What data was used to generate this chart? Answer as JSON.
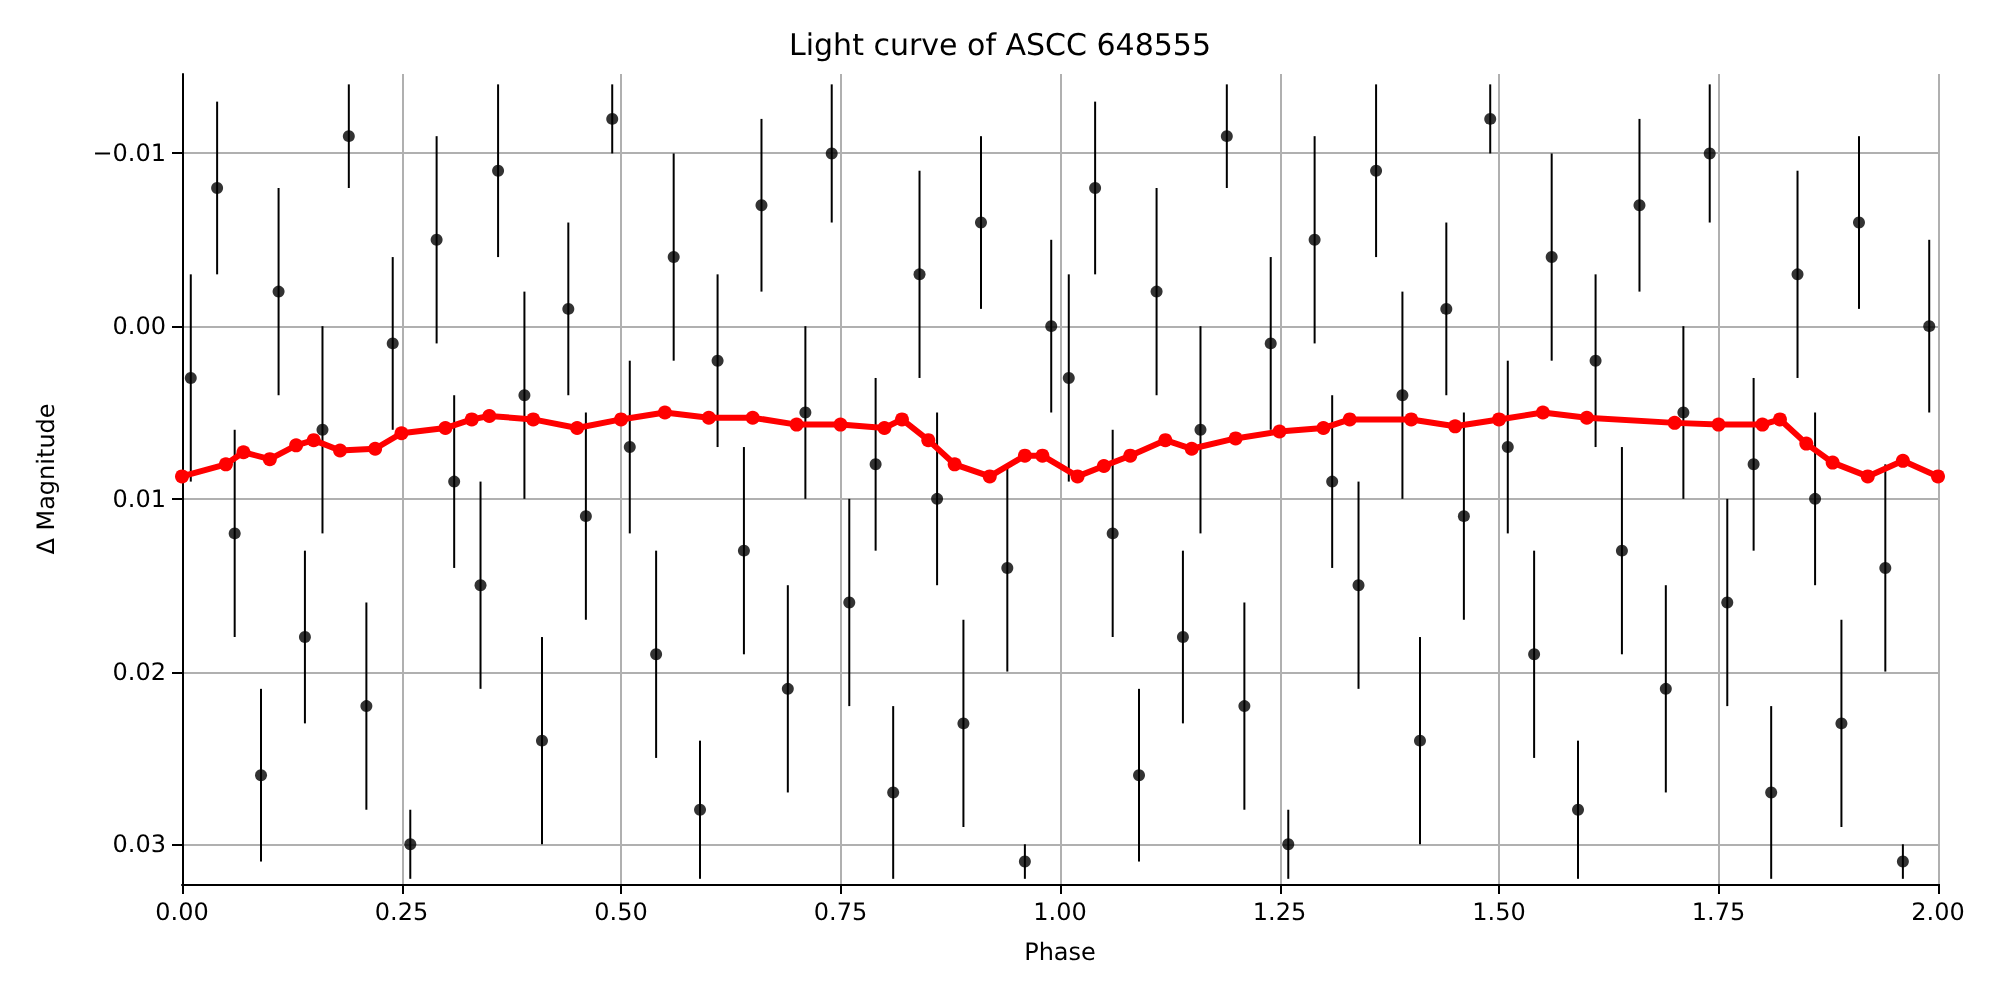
{
  "chart_data": {
    "type": "scatter",
    "title": "Light curve of ASCC 648555",
    "xlabel": "Phase",
    "ylabel": "Δ Magnitude",
    "xlim": [
      0,
      2
    ],
    "xticks": [
      {
        "value": 0,
        "label": "0.00"
      },
      {
        "value": 0.25,
        "label": "0.25"
      },
      {
        "value": 0.5,
        "label": "0.50"
      },
      {
        "value": 0.75,
        "label": "0.75"
      },
      {
        "value": 1,
        "label": "1.00"
      },
      {
        "value": 1.25,
        "label": "1.25"
      },
      {
        "value": 1.5,
        "label": "1.50"
      },
      {
        "value": 1.75,
        "label": "1.75"
      },
      {
        "value": 2,
        "label": "2.00"
      }
    ],
    "ylim": [
      0.0323,
      -0.0146
    ],
    "yticks": [
      {
        "value": -0.01,
        "label": "−0.01"
      },
      {
        "value": 0,
        "label": "0.00"
      },
      {
        "value": 0.01,
        "label": "0.01"
      },
      {
        "value": 0.02,
        "label": "0.02"
      },
      {
        "value": 0.03,
        "label": "0.03"
      }
    ],
    "grid": true,
    "series": [
      {
        "color": "#000000",
        "marker": "circle",
        "x": [
          0.01,
          0.04,
          0.06,
          0.09,
          0.11,
          0.14,
          0.16,
          0.19,
          0.21,
          0.24,
          0.26,
          0.29,
          0.31,
          0.34,
          0.36,
          0.39,
          0.41,
          0.44,
          0.46,
          0.49,
          0.51,
          0.54,
          0.56,
          0.59,
          0.61,
          0.64,
          0.66,
          0.69,
          0.71,
          0.74,
          0.76,
          0.79,
          0.81,
          0.84,
          0.86,
          0.89,
          0.91,
          0.94,
          0.96,
          0.99,
          1.01,
          1.04,
          1.06,
          1.09,
          1.11,
          1.14,
          1.16,
          1.19,
          1.21,
          1.24,
          1.26,
          1.29,
          1.31,
          1.34,
          1.36,
          1.39,
          1.41,
          1.44,
          1.46,
          1.49,
          1.51,
          1.54,
          1.56,
          1.59,
          1.61,
          1.64,
          1.66,
          1.69,
          1.71,
          1.74,
          1.76,
          1.79,
          1.81,
          1.84,
          1.86,
          1.89,
          1.91,
          1.94,
          1.96,
          1.99
        ],
        "values": [
          0.003,
          -0.008,
          0.012,
          0.026,
          -0.002,
          0.018,
          0.006,
          -0.011,
          0.022,
          0.001,
          0.03,
          -0.005,
          0.009,
          0.015,
          -0.009,
          0.004,
          0.024,
          -0.001,
          0.011,
          -0.012,
          0.007,
          0.019,
          -0.004,
          0.028,
          0.002,
          0.013,
          -0.007,
          0.021,
          0.005,
          -0.01,
          0.016,
          0.008,
          0.027,
          -0.003,
          0.01,
          0.023,
          -0.006,
          0.014,
          0.031,
          0.0,
          0.003,
          -0.008,
          0.012,
          0.026,
          -0.002,
          0.018,
          0.006,
          -0.011,
          0.022,
          0.001,
          0.03,
          -0.005,
          0.009,
          0.015,
          -0.009,
          0.004,
          0.024,
          -0.001,
          0.011,
          -0.012,
          0.007,
          0.019,
          -0.004,
          0.028,
          0.002,
          0.013,
          -0.007,
          0.021,
          0.005,
          -0.01,
          0.016,
          0.008,
          0.027,
          -0.003,
          0.01,
          0.023,
          -0.006,
          0.014,
          0.031,
          0.0
        ],
        "errors": [
          0.006,
          0.005,
          0.006,
          0.005,
          0.006,
          0.005,
          0.006,
          0.003,
          0.006,
          0.005,
          0.002,
          0.006,
          0.005,
          0.006,
          0.005,
          0.006,
          0.006,
          0.005,
          0.006,
          0.002,
          0.005,
          0.006,
          0.006,
          0.004,
          0.005,
          0.006,
          0.005,
          0.006,
          0.005,
          0.004,
          0.006,
          0.005,
          0.005,
          0.006,
          0.005,
          0.006,
          0.005,
          0.006,
          0.001,
          0.005,
          0.006,
          0.005,
          0.006,
          0.005,
          0.006,
          0.005,
          0.006,
          0.003,
          0.006,
          0.005,
          0.002,
          0.006,
          0.005,
          0.006,
          0.005,
          0.006,
          0.006,
          0.005,
          0.006,
          0.002,
          0.005,
          0.006,
          0.006,
          0.004,
          0.005,
          0.006,
          0.005,
          0.006,
          0.005,
          0.004,
          0.006,
          0.005,
          0.005,
          0.006,
          0.005,
          0.006,
          0.005,
          0.006,
          0.001,
          0.005
        ]
      },
      {
        "type": "line",
        "color": "#ff0000",
        "marker": "circle",
        "line_style": "solid",
        "x": [
          0,
          0.05,
          0.07,
          0.1,
          0.13,
          0.15,
          0.18,
          0.22,
          0.25,
          0.3,
          0.33,
          0.35,
          0.4,
          0.45,
          0.5,
          0.55,
          0.6,
          0.65,
          0.7,
          0.75,
          0.8,
          0.82,
          0.85,
          0.88,
          0.92,
          0.96,
          0.98,
          1.02,
          1.05,
          1.08,
          1.12,
          1.15,
          1.2,
          1.25,
          1.3,
          1.33,
          1.4,
          1.45,
          1.5,
          1.55,
          1.6,
          1.7,
          1.75,
          1.8,
          1.82,
          1.85,
          1.88,
          1.92,
          1.96,
          2
        ],
        "values": [
          0.0087,
          0.008,
          0.0073,
          0.0077,
          0.0069,
          0.0066,
          0.0072,
          0.0071,
          0.0062,
          0.0059,
          0.0054,
          0.0052,
          0.0054,
          0.0059,
          0.0054,
          0.005,
          0.0053,
          0.0053,
          0.0057,
          0.0057,
          0.0059,
          0.0054,
          0.0066,
          0.008,
          0.0087,
          0.0075,
          0.0075,
          0.0087,
          0.0081,
          0.0075,
          0.0066,
          0.0071,
          0.0065,
          0.0061,
          0.0059,
          0.0054,
          0.0054,
          0.0058,
          0.0054,
          0.005,
          0.0053,
          0.0056,
          0.0057,
          0.0057,
          0.0054,
          0.0068,
          0.0079,
          0.0087,
          0.0078,
          0.0087
        ]
      }
    ]
  }
}
